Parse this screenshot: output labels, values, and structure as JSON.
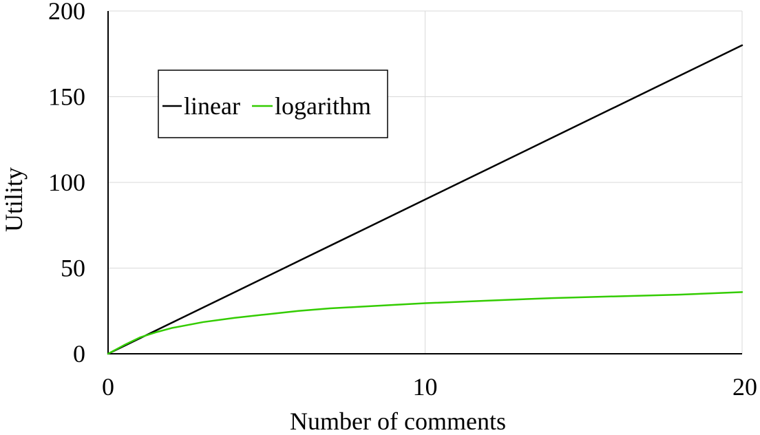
{
  "chart_data": {
    "type": "line",
    "title": "",
    "xlabel": "Number of comments",
    "ylabel": "Utility",
    "xlim": [
      0,
      20
    ],
    "ylim": [
      0,
      200
    ],
    "xticks": [
      0,
      10,
      20
    ],
    "yticks": [
      0,
      50,
      100,
      150,
      200
    ],
    "grid": true,
    "legend_position": "upper-left",
    "series": [
      {
        "name": "linear",
        "color": "#000000",
        "x": [
          0,
          2,
          4,
          6,
          8,
          10,
          12,
          14,
          16,
          18,
          20
        ],
        "y": [
          0,
          18,
          36,
          54,
          72,
          90,
          108,
          126,
          144,
          162,
          180
        ]
      },
      {
        "name": "logarithm",
        "color": "#33cc00",
        "x": [
          0,
          0.5,
          1,
          1.5,
          2,
          3,
          4,
          5,
          6,
          7,
          8,
          9,
          10,
          12,
          14,
          16,
          18,
          20
        ],
        "y": [
          0,
          5,
          9.5,
          12.5,
          15,
          18.5,
          21,
          23,
          25,
          26.5,
          27.5,
          28.5,
          29.5,
          31,
          32.5,
          33.5,
          34.5,
          36
        ]
      }
    ]
  }
}
